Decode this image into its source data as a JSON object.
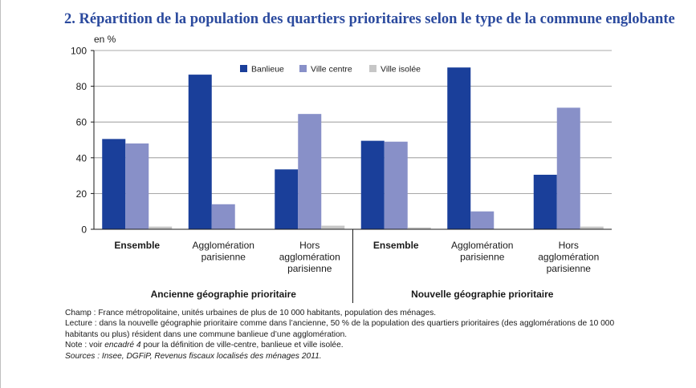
{
  "title": "2. Répartition de la population des quartiers prioritaires selon le type de la commune englobante",
  "unit_label": "en %",
  "colors": {
    "banlieue": "#1a3f9a",
    "ville_centre": "#8890c8",
    "ville_isolee": "#c6c6c6",
    "title": "#2b4a9e"
  },
  "chart_data": {
    "type": "bar",
    "title": "2. Répartition de la population des quartiers prioritaires selon le type de la commune englobante",
    "ylabel": "en %",
    "xlabel": "",
    "ylim": [
      0,
      100
    ],
    "yticks": [
      0,
      20,
      40,
      60,
      80,
      100
    ],
    "grid": true,
    "legend_position": "top",
    "groups": [
      {
        "label": "Ancienne géographie prioritaire",
        "categories": [
          {
            "label": [
              "Ensemble"
            ],
            "bold": true
          },
          {
            "label": [
              "Agglomération",
              "parisienne"
            ],
            "bold": false
          },
          {
            "label": [
              "Hors",
              "agglomération",
              "parisienne"
            ],
            "bold": false
          }
        ]
      },
      {
        "label": "Nouvelle géographie prioritaire",
        "categories": [
          {
            "label": [
              "Ensemble"
            ],
            "bold": true
          },
          {
            "label": [
              "Agglomération",
              "parisienne"
            ],
            "bold": false
          },
          {
            "label": [
              "Hors",
              "agglomération",
              "parisienne"
            ],
            "bold": false
          }
        ]
      }
    ],
    "series": [
      {
        "name": "Banlieue",
        "color": "#1a3f9a",
        "values": [
          50.5,
          86.5,
          33.5,
          49.5,
          90.5,
          30.5
        ]
      },
      {
        "name": "Ville centre",
        "color": "#8890c8",
        "values": [
          48.0,
          14.0,
          64.5,
          49.0,
          10.0,
          68.0
        ]
      },
      {
        "name": "Ville isolée",
        "color": "#c6c6c6",
        "values": [
          1.5,
          0,
          2.0,
          1.0,
          0,
          1.5
        ]
      }
    ]
  },
  "notes": {
    "champ": "Champ : France métropolitaine, unités urbaines de plus de 10 000 habitants, population des ménages.",
    "lecture": "Lecture : dans la nouvelle géographie prioritaire comme dans l’ancienne, 50 % de la population des quartiers prioritaires (des agglomérations de 10 000 habitants ou plus) résident dans une commune banlieue d’une agglomération.",
    "note_before": "Note : voir ",
    "note_italic": "encadré 4",
    "note_after": " pour la définition de ville-centre, banlieue et ville isolée.",
    "sources": "Sources : Insee, DGFiP, Revenus fiscaux localisés des ménages 2011."
  }
}
